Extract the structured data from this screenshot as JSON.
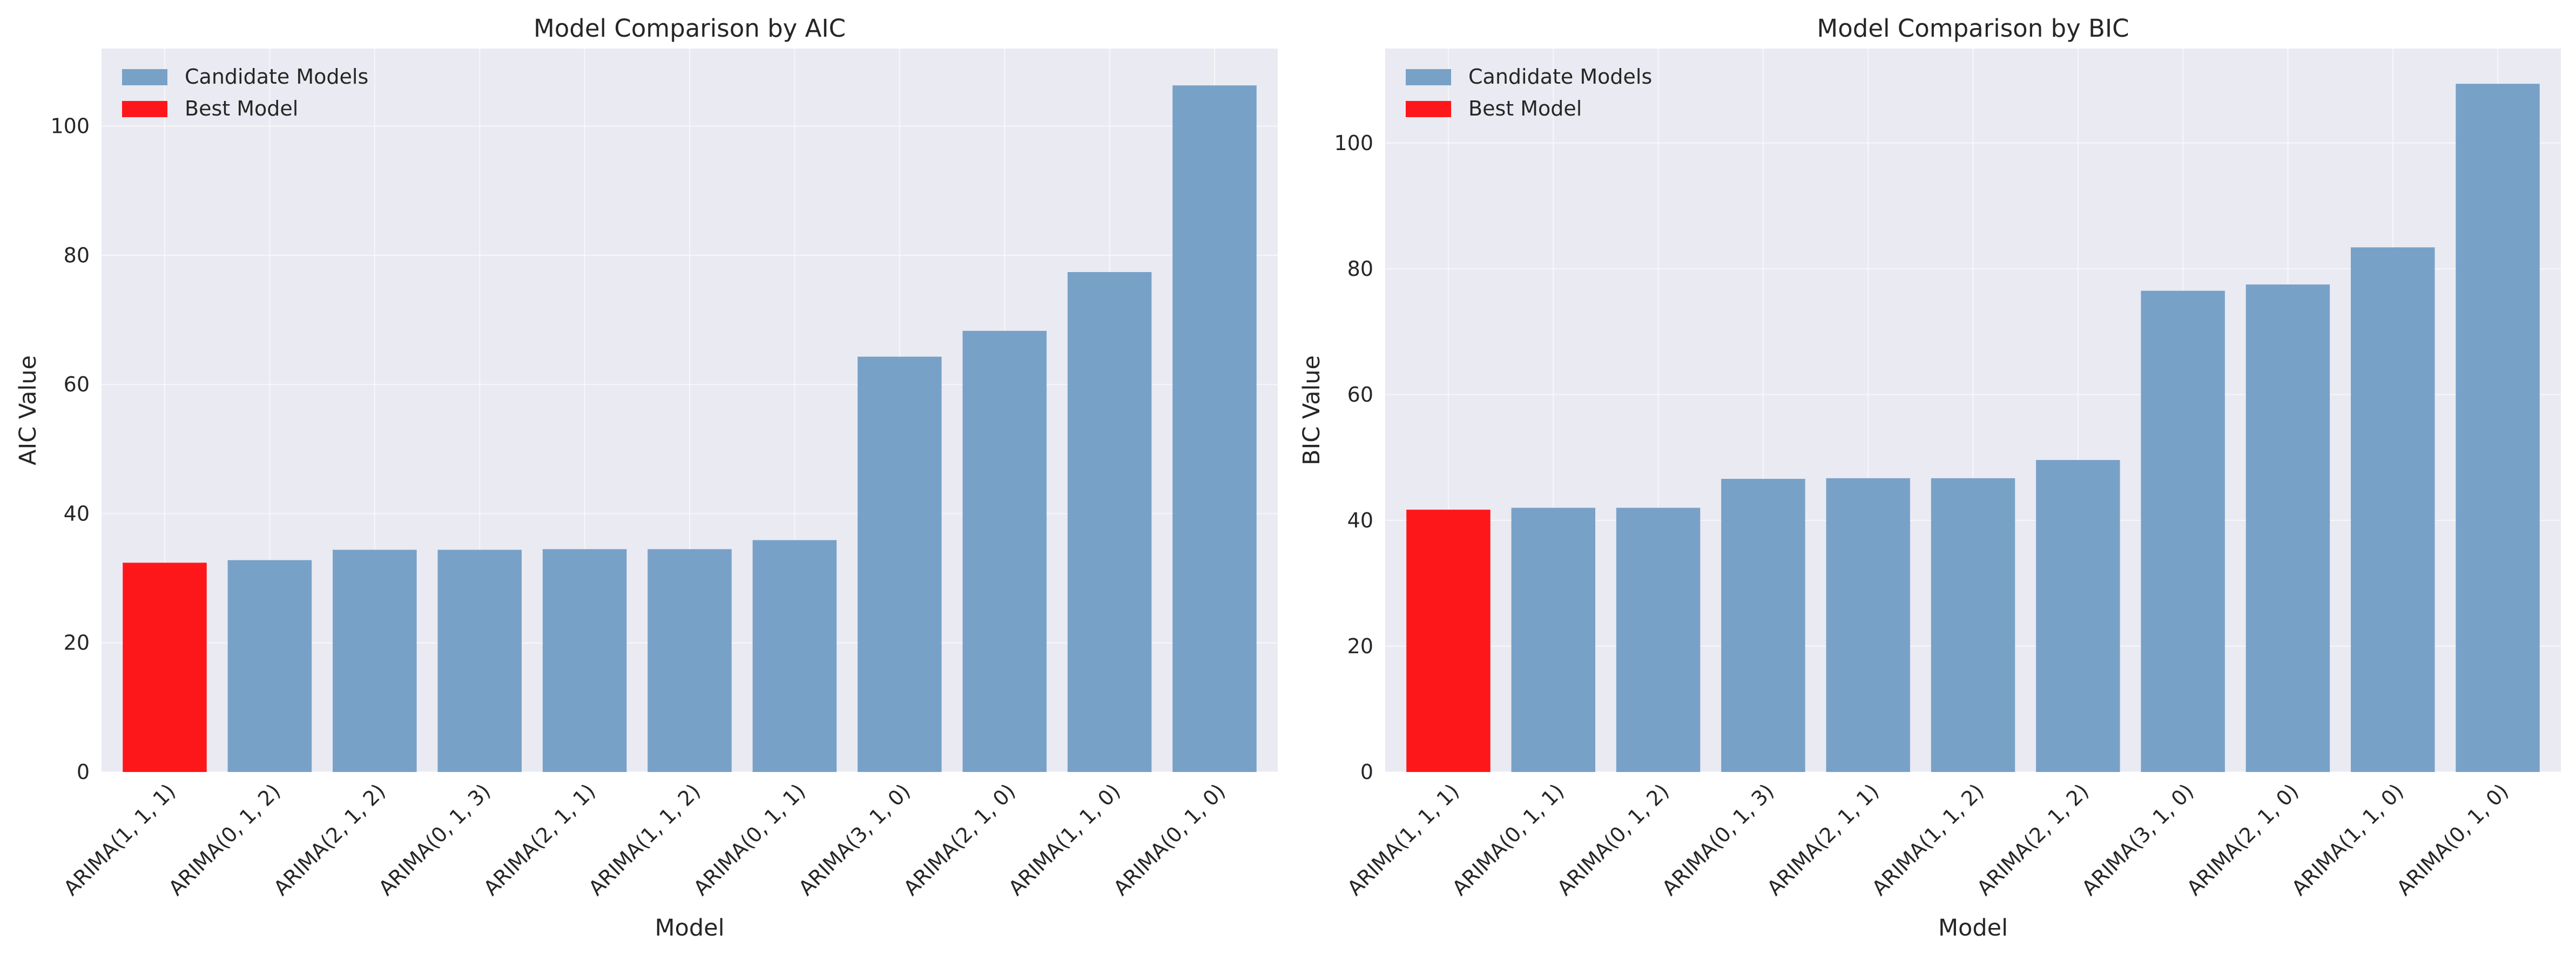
{
  "colors": {
    "candidate": "#78a1c8",
    "best": "#fe171a",
    "plot_background": "#eaeaf2",
    "grid": "#ffffff"
  },
  "chart_data": [
    {
      "type": "bar",
      "title": "Model Comparison by AIC",
      "xlabel": "Model",
      "ylabel": "AIC Value",
      "categories": [
        "ARIMA(1, 1, 1)",
        "ARIMA(0, 1, 2)",
        "ARIMA(2, 1, 2)",
        "ARIMA(0, 1, 3)",
        "ARIMA(2, 1, 1)",
        "ARIMA(1, 1, 2)",
        "ARIMA(0, 1, 1)",
        "ARIMA(3, 1, 0)",
        "ARIMA(2, 1, 0)",
        "ARIMA(1, 1, 0)",
        "ARIMA(0, 1, 0)"
      ],
      "values": [
        32.4,
        32.8,
        34.4,
        34.4,
        34.5,
        34.5,
        35.9,
        64.3,
        68.3,
        77.4,
        106.3
      ],
      "best_index": 0,
      "ylim": [
        0,
        112
      ],
      "yticks": [
        0,
        20,
        40,
        60,
        80,
        100
      ],
      "grid": true,
      "legend": {
        "position": "top-left",
        "entries": [
          {
            "label": "Candidate Models",
            "color_key": "candidate"
          },
          {
            "label": "Best Model",
            "color_key": "best"
          }
        ]
      }
    },
    {
      "type": "bar",
      "title": "Model Comparison by BIC",
      "xlabel": "Model",
      "ylabel": "BIC Value",
      "categories": [
        "ARIMA(1, 1, 1)",
        "ARIMA(0, 1, 1)",
        "ARIMA(0, 1, 2)",
        "ARIMA(0, 1, 3)",
        "ARIMA(2, 1, 1)",
        "ARIMA(1, 1, 2)",
        "ARIMA(2, 1, 2)",
        "ARIMA(3, 1, 0)",
        "ARIMA(2, 1, 0)",
        "ARIMA(1, 1, 0)",
        "ARIMA(0, 1, 0)"
      ],
      "values": [
        41.7,
        42.0,
        42.0,
        46.6,
        46.7,
        46.7,
        49.6,
        76.5,
        77.5,
        83.4,
        109.4
      ],
      "best_index": 0,
      "ylim": [
        0,
        115
      ],
      "yticks": [
        0,
        20,
        40,
        60,
        80,
        100
      ],
      "grid": true,
      "legend": {
        "position": "top-left",
        "entries": [
          {
            "label": "Candidate Models",
            "color_key": "candidate"
          },
          {
            "label": "Best Model",
            "color_key": "best"
          }
        ]
      }
    }
  ]
}
